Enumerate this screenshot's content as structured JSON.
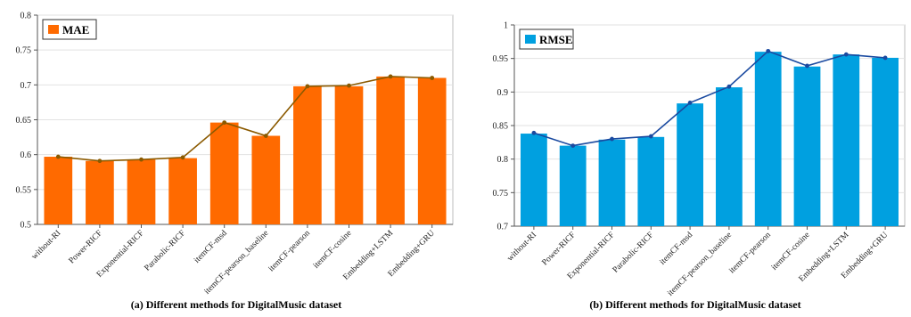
{
  "chart_data": [
    {
      "type": "bar",
      "caption": "(a) Different methods for DigitalMusic dataset",
      "categories": [
        "without-RI",
        "Power-RICF",
        "Exponential-RICF",
        "Parabolic-RICF",
        "itemCF-msd",
        "itemCF-pearson_baseline",
        "itemCF-pearson",
        "itemCF-cosine",
        "Embedding+LSTM",
        "Embedding+GRU"
      ],
      "series": [
        {
          "name": "MAE",
          "values": [
            0.597,
            0.591,
            0.593,
            0.595,
            0.646,
            0.627,
            0.698,
            0.698,
            0.712,
            0.71
          ]
        }
      ],
      "line_overlay": [
        0.597,
        0.591,
        0.593,
        0.596,
        0.646,
        0.627,
        0.698,
        0.699,
        0.712,
        0.71
      ],
      "ylim": [
        0.5,
        0.8
      ],
      "yticks": [
        "0.5",
        "0.55",
        "0.6",
        "0.65",
        "0.7",
        "0.75",
        "0.8"
      ],
      "bar_color": "#ff6a00",
      "line_color": "#8b5a00",
      "legend_position": "top-left",
      "grid": true
    },
    {
      "type": "bar",
      "caption": "(b) Different methods for DigitalMusic dataset",
      "categories": [
        "without-RI",
        "Power-RICF",
        "Exponential-RICF",
        "Parabolic-RICF",
        "itemCF-msd",
        "itemCF-pearson_baseline",
        "itemCF-pearson",
        "itemCF-cosine",
        "Embedding+LSTM",
        "Embedding+GRU"
      ],
      "series": [
        {
          "name": "RMSE",
          "values": [
            0.838,
            0.82,
            0.829,
            0.833,
            0.883,
            0.907,
            0.96,
            0.938,
            0.956,
            0.951
          ]
        }
      ],
      "line_overlay": [
        0.839,
        0.82,
        0.83,
        0.834,
        0.884,
        0.908,
        0.961,
        0.939,
        0.956,
        0.951
      ],
      "ylim": [
        0.7,
        1.0
      ],
      "yticks": [
        "0.7",
        "0.75",
        "0.8",
        "0.85",
        "0.9",
        "0.95",
        "1"
      ],
      "bar_color": "#00a0e0",
      "line_color": "#1a4aa0",
      "legend_position": "top-left",
      "grid": true
    }
  ]
}
